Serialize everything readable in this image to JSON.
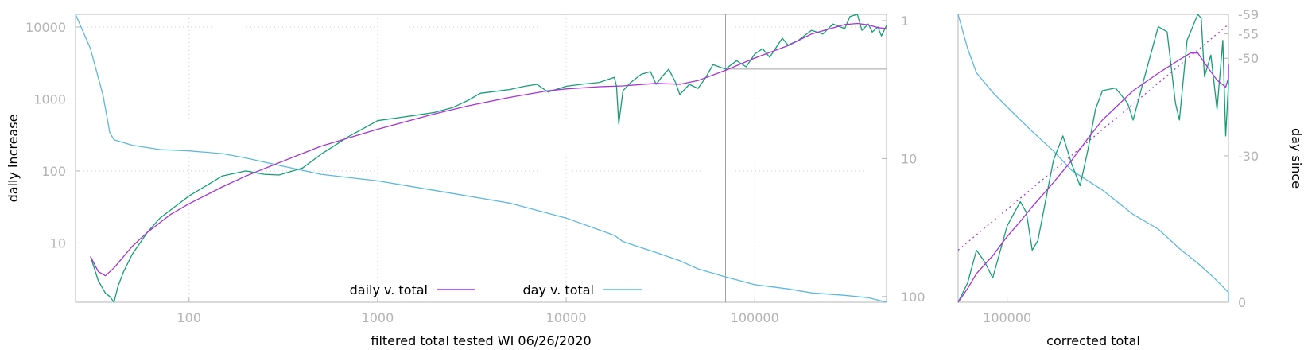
{
  "colors": {
    "daily": "#a633d6",
    "day": "#5cb8e0",
    "raw": "#159e75",
    "axis": "#b4b4b4",
    "grid": "#d2d2d2"
  },
  "chart_data": [
    {
      "type": "line",
      "xlabel": "filtered total tested WI 06/26/2020",
      "ylabel": "daily increase",
      "y2label": "",
      "xscale": "log",
      "yscale": "log",
      "y2scale": "log",
      "xlim": [
        25,
        500000
      ],
      "ylim": [
        1.5,
        15000
      ],
      "y2lim": [
        110,
        0.9
      ],
      "grid": true,
      "legend_position": "bottom",
      "x_ticks": [
        {
          "v": 100,
          "label": "100"
        },
        {
          "v": 1000,
          "label": "1000"
        },
        {
          "v": 10000,
          "label": "10000"
        },
        {
          "v": 100000,
          "label": "100000"
        }
      ],
      "y_ticks": [
        {
          "v": 10,
          "label": "10"
        },
        {
          "v": 100,
          "label": "100"
        },
        {
          "v": 1000,
          "label": "1000"
        },
        {
          "v": 10000,
          "label": "10000"
        }
      ],
      "y2_ticks": [
        {
          "v": 1,
          "label": "1"
        },
        {
          "v": 10,
          "label": "10"
        },
        {
          "v": 100,
          "label": "100"
        }
      ],
      "inset_box": {
        "x": [
          70000,
          500000
        ],
        "y": [
          6,
          2600
        ]
      },
      "series": [
        {
          "name": "daily v. total",
          "axis": "y",
          "color": "#a633d6",
          "points": [
            [
              30,
              6.5
            ],
            [
              33,
              4
            ],
            [
              36,
              3.5
            ],
            [
              40,
              4.5
            ],
            [
              45,
              6.5
            ],
            [
              50,
              9
            ],
            [
              60,
              14
            ],
            [
              80,
              25
            ],
            [
              100,
              35
            ],
            [
              150,
              60
            ],
            [
              200,
              85
            ],
            [
              300,
              130
            ],
            [
              500,
              220
            ],
            [
              1000,
              380
            ],
            [
              2000,
              620
            ],
            [
              3000,
              800
            ],
            [
              5000,
              1050
            ],
            [
              8000,
              1300
            ],
            [
              10000,
              1380
            ],
            [
              15000,
              1480
            ],
            [
              20000,
              1520
            ],
            [
              30000,
              1650
            ],
            [
              40000,
              1600
            ],
            [
              50000,
              1800
            ],
            [
              70000,
              2500
            ],
            [
              100000,
              3700
            ],
            [
              150000,
              5500
            ],
            [
              200000,
              8000
            ],
            [
              300000,
              10800
            ],
            [
              350000,
              11200
            ],
            [
              400000,
              10700
            ],
            [
              450000,
              9800
            ],
            [
              500000,
              9500
            ]
          ]
        },
        {
          "name": "day v. total",
          "axis": "y2",
          "color": "#5cb8e0",
          "points": [
            [
              25,
              0.9
            ],
            [
              30,
              1.6
            ],
            [
              35,
              3.5
            ],
            [
              38,
              6.5
            ],
            [
              40,
              7.3
            ],
            [
              50,
              8.0
            ],
            [
              70,
              8.6
            ],
            [
              100,
              8.8
            ],
            [
              150,
              9.2
            ],
            [
              200,
              9.9
            ],
            [
              300,
              11.2
            ],
            [
              500,
              13.0
            ],
            [
              1000,
              14.5
            ],
            [
              2000,
              17.0
            ],
            [
              5000,
              21.0
            ],
            [
              10000,
              27.0
            ],
            [
              18000,
              36.0
            ],
            [
              20000,
              40.0
            ],
            [
              30000,
              48.0
            ],
            [
              40000,
              55.0
            ],
            [
              50000,
              63.0
            ],
            [
              70000,
              72.0
            ],
            [
              100000,
              82.0
            ],
            [
              150000,
              88.0
            ],
            [
              200000,
              94.0
            ],
            [
              300000,
              98.0
            ],
            [
              400000,
              102.0
            ],
            [
              500000,
              110.0
            ]
          ]
        },
        {
          "name": "",
          "axis": "y",
          "color": "#159e75",
          "points": [
            [
              30,
              6.5
            ],
            [
              33,
              3
            ],
            [
              36,
              2
            ],
            [
              38,
              1.8
            ],
            [
              40,
              1.5
            ],
            [
              42,
              2.5
            ],
            [
              45,
              4
            ],
            [
              50,
              7
            ],
            [
              60,
              14
            ],
            [
              70,
              22
            ],
            [
              100,
              45
            ],
            [
              150,
              85
            ],
            [
              200,
              100
            ],
            [
              250,
              90
            ],
            [
              300,
              88
            ],
            [
              400,
              110
            ],
            [
              500,
              170
            ],
            [
              700,
              300
            ],
            [
              1000,
              500
            ],
            [
              1500,
              580
            ],
            [
              2000,
              650
            ],
            [
              2500,
              760
            ],
            [
              3000,
              950
            ],
            [
              3500,
              1200
            ],
            [
              5000,
              1350
            ],
            [
              6000,
              1500
            ],
            [
              7000,
              1600
            ],
            [
              8000,
              1250
            ],
            [
              10000,
              1500
            ],
            [
              12000,
              1600
            ],
            [
              15000,
              1700
            ],
            [
              18000,
              2000
            ],
            [
              18500,
              1500
            ],
            [
              19000,
              450
            ],
            [
              20000,
              1300
            ],
            [
              22000,
              1700
            ],
            [
              25000,
              2200
            ],
            [
              28000,
              2400
            ],
            [
              30000,
              1600
            ],
            [
              32000,
              2000
            ],
            [
              35000,
              2600
            ],
            [
              38000,
              1700
            ],
            [
              40000,
              1150
            ],
            [
              45000,
              1600
            ],
            [
              50000,
              1400
            ],
            [
              55000,
              2000
            ],
            [
              60000,
              3000
            ],
            [
              70000,
              2600
            ],
            [
              80000,
              3400
            ],
            [
              90000,
              2800
            ],
            [
              100000,
              4200
            ],
            [
              110000,
              5000
            ],
            [
              120000,
              3800
            ],
            [
              140000,
              7000
            ],
            [
              150000,
              5600
            ],
            [
              170000,
              6500
            ],
            [
              200000,
              9000
            ],
            [
              230000,
              8000
            ],
            [
              260000,
              11000
            ],
            [
              300000,
              9500
            ],
            [
              320000,
              14000
            ],
            [
              350000,
              15000
            ],
            [
              370000,
              9000
            ],
            [
              400000,
              11000
            ],
            [
              420000,
              8500
            ],
            [
              450000,
              10000
            ],
            [
              470000,
              7500
            ],
            [
              500000,
              10500
            ]
          ]
        }
      ]
    },
    {
      "type": "line",
      "xlabel": "corrected total",
      "ylabel": "",
      "y2label": "day since",
      "xscale": "log",
      "yscale": "log",
      "xlim": [
        70000,
        500000
      ],
      "ylim": [
        6,
        2600
      ],
      "y2lim": [
        0,
        -59
      ],
      "y2_ticks": [
        {
          "v": 0,
          "label": "0"
        },
        {
          "v": -30,
          "label": "-30"
        },
        {
          "v": -50,
          "label": "-50"
        },
        {
          "v": -55,
          "label": "-55"
        },
        {
          "v": -59,
          "label": "-59"
        }
      ],
      "x_ticks": [
        {
          "v": 100000,
          "label": "100000"
        }
      ],
      "grid": false,
      "series": [
        {
          "name": "",
          "axis": "y",
          "color": "#a633d6",
          "points": [
            [
              70000,
              6
            ],
            [
              75000,
              8
            ],
            [
              80000,
              11
            ],
            [
              90000,
              16
            ],
            [
              100000,
              24
            ],
            [
              110000,
              33
            ],
            [
              120000,
              45
            ],
            [
              140000,
              75
            ],
            [
              160000,
              120
            ],
            [
              180000,
              190
            ],
            [
              200000,
              280
            ],
            [
              250000,
              520
            ],
            [
              300000,
              750
            ],
            [
              350000,
              1000
            ],
            [
              380000,
              1150
            ],
            [
              400000,
              1150
            ],
            [
              430000,
              850
            ],
            [
              460000,
              650
            ],
            [
              490000,
              560
            ],
            [
              500000,
              680
            ],
            [
              520000,
              900
            ]
          ]
        },
        {
          "name": "",
          "axis": "y",
          "color": "#a633d6",
          "dashed": true,
          "points": [
            [
              70000,
              18
            ],
            [
              500000,
              2100
            ]
          ]
        },
        {
          "name": "",
          "axis": "y2",
          "color": "#5cb8e0",
          "points": [
            [
              70000,
              -59
            ],
            [
              75000,
              -52
            ],
            [
              80000,
              -47
            ],
            [
              90000,
              -43
            ],
            [
              100000,
              -40
            ],
            [
              120000,
              -35
            ],
            [
              140000,
              -31
            ],
            [
              160000,
              -27
            ],
            [
              200000,
              -23
            ],
            [
              250000,
              -18
            ],
            [
              300000,
              -15
            ],
            [
              350000,
              -11
            ],
            [
              400000,
              -8
            ],
            [
              450000,
              -5
            ],
            [
              500000,
              -2
            ],
            [
              520000,
              0
            ]
          ]
        },
        {
          "name": "",
          "axis": "y",
          "color": "#159e75",
          "points": [
            [
              70000,
              6
            ],
            [
              75000,
              9
            ],
            [
              80000,
              18
            ],
            [
              85000,
              14
            ],
            [
              90000,
              10
            ],
            [
              100000,
              30
            ],
            [
              110000,
              50
            ],
            [
              115000,
              40
            ],
            [
              120000,
              18
            ],
            [
              125000,
              22
            ],
            [
              140000,
              120
            ],
            [
              150000,
              200
            ],
            [
              160000,
              110
            ],
            [
              170000,
              70
            ],
            [
              180000,
              150
            ],
            [
              190000,
              350
            ],
            [
              200000,
              520
            ],
            [
              220000,
              550
            ],
            [
              240000,
              400
            ],
            [
              250000,
              280
            ],
            [
              270000,
              650
            ],
            [
              300000,
              2000
            ],
            [
              320000,
              1800
            ],
            [
              340000,
              400
            ],
            [
              350000,
              280
            ],
            [
              370000,
              1500
            ],
            [
              400000,
              2600
            ],
            [
              410000,
              2400
            ],
            [
              420000,
              700
            ],
            [
              440000,
              1100
            ],
            [
              460000,
              350
            ],
            [
              480000,
              1500
            ],
            [
              490000,
              200
            ],
            [
              500000,
              600
            ],
            [
              520000,
              900
            ]
          ]
        }
      ]
    }
  ]
}
